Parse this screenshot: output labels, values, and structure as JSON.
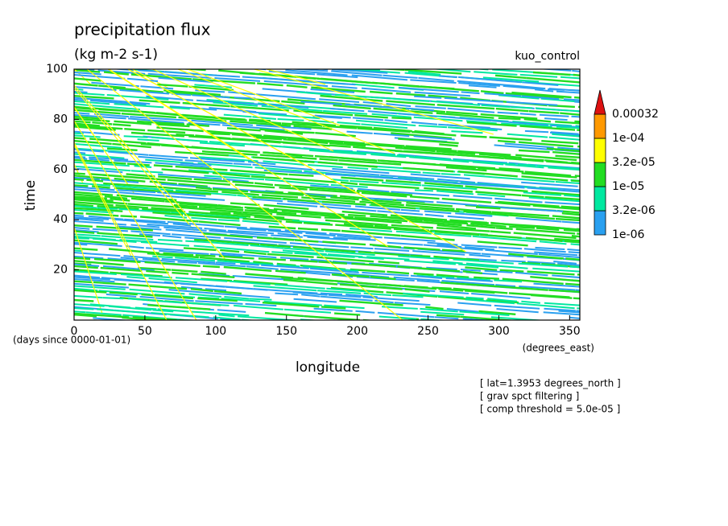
{
  "chart_data": {
    "type": "heatmap",
    "title": "precipitation flux",
    "subtitle": "(kg m-2 s-1)",
    "run_label": "kuo_control",
    "xlabel": "longitude",
    "ylabel": "time",
    "xunit": "(degrees_east)",
    "yunit": "(days since 0000-01-01)",
    "xlim": [
      0,
      357.2
    ],
    "ylim": [
      0,
      100
    ],
    "xticks": [
      0,
      50,
      100,
      150,
      200,
      250,
      300,
      350
    ],
    "yticks": [
      20,
      40,
      60,
      80,
      100
    ],
    "colorbar": {
      "levels": [
        {
          "value": 1e-06,
          "label": "1e-06"
        },
        {
          "value": 3.2e-06,
          "label": "3.2e-06"
        },
        {
          "value": 1e-05,
          "label": "1e-05"
        },
        {
          "value": 3.2e-05,
          "label": "3.2e-05"
        },
        {
          "value": 0.0001,
          "label": "1e-04"
        },
        0.00032
      ],
      "colors": [
        "#2aa0f0",
        "#00e8a0",
        "#22dd22",
        "#ffff00",
        "#ff9900",
        "#dd1111"
      ]
    },
    "notes": [
      "[ lat=1.3953 degrees_north ]",
      "[ grav spct filtering ]",
      "[ comp threshold = 5.0e-05 ]"
    ]
  }
}
